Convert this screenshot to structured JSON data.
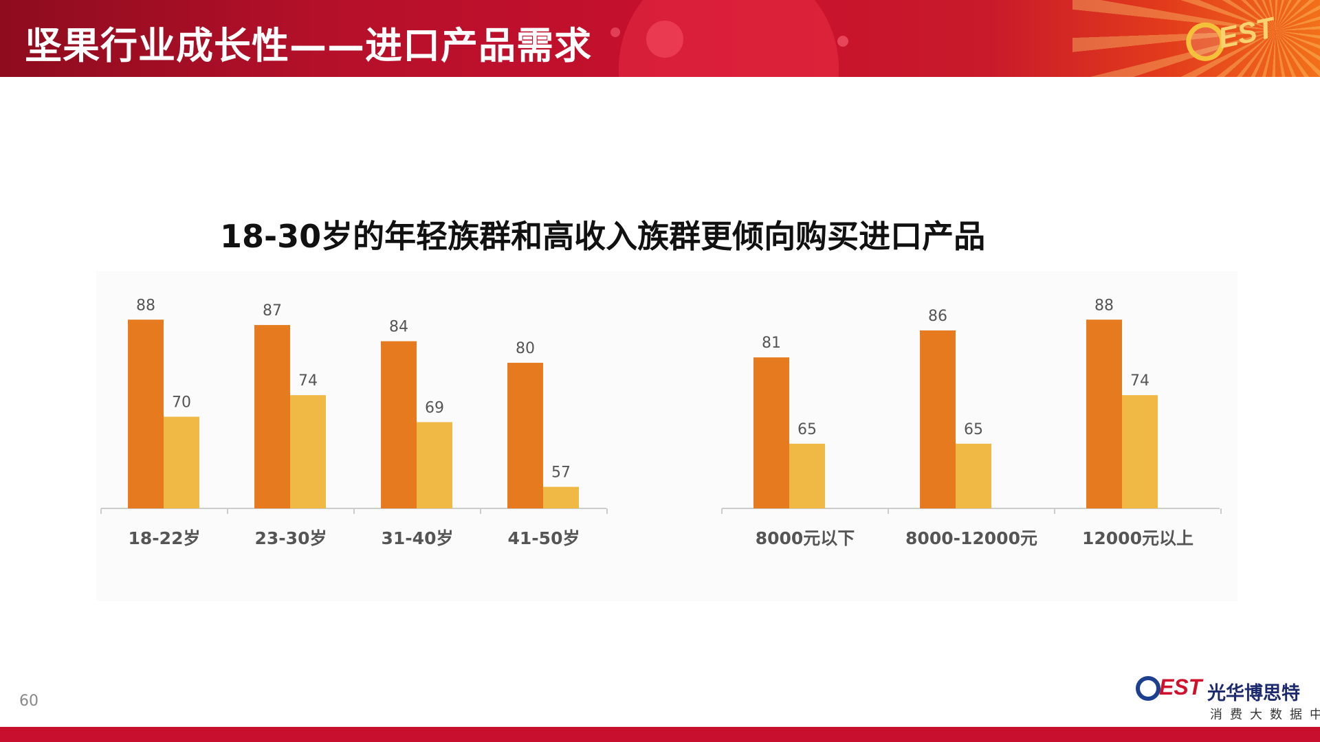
{
  "header": {
    "title": "坚果行业成长性——进口产品需求",
    "logo_text": "EST"
  },
  "subtitle": "18-30岁的年轻族群和高收入族群更倾向购买进口产品",
  "page_number": "60",
  "brand": {
    "logo_text": "EST",
    "name": "光华博思特",
    "subtitle": "消费大数据中心"
  },
  "colors": {
    "header_red": "#c8102e",
    "bar_dark": "#e57a1e",
    "bar_light": "#f0b945",
    "footer_red": "#c8102e"
  },
  "chart_data": [
    {
      "type": "bar",
      "title": "",
      "categories": [
        "18-22岁",
        "23-30岁",
        "31-40岁",
        "41-50岁"
      ],
      "series": [
        {
          "values": [
            88,
            87,
            84,
            80
          ]
        },
        {
          "values": [
            70,
            74,
            69,
            57
          ]
        }
      ],
      "ylim": [
        55,
        92
      ],
      "grid": false,
      "legend": "none"
    },
    {
      "type": "bar",
      "title": "",
      "categories": [
        "8000元以下",
        "8000-12000元",
        "12000元以上"
      ],
      "series": [
        {
          "values": [
            81,
            86,
            88
          ]
        },
        {
          "values": [
            65,
            65,
            74
          ]
        }
      ],
      "ylim": [
        55,
        92
      ],
      "grid": false,
      "legend": "none"
    }
  ]
}
